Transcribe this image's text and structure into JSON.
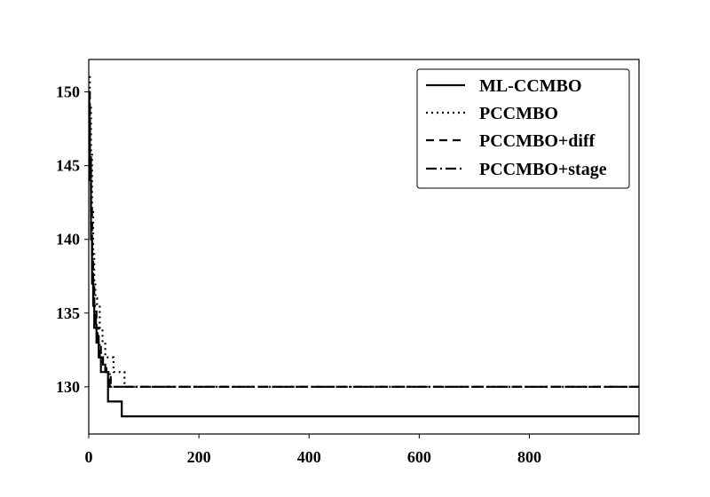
{
  "chart_data": {
    "type": "line",
    "title": "",
    "xlabel": "",
    "ylabel": "",
    "xlim": [
      0,
      999
    ],
    "ylim": [
      126.8,
      152.2
    ],
    "xticks": [
      0,
      200,
      400,
      600,
      800
    ],
    "yticks": [
      130,
      135,
      140,
      145,
      150
    ],
    "xtick_labels": [
      "0",
      "200",
      "400",
      "600",
      "800"
    ],
    "ytick_labels": [
      "130",
      "135",
      "140",
      "145",
      "150"
    ],
    "grid": false,
    "legend_position": "top-right",
    "series": [
      {
        "name": "ML-CCMBO",
        "style": "solid",
        "color": "#000000",
        "x": [
          0,
          1,
          2,
          4,
          6,
          8,
          10,
          14,
          18,
          22,
          35,
          60,
          999
        ],
        "y": [
          150,
          148,
          144,
          140,
          137,
          135.5,
          134,
          133,
          132,
          131,
          129,
          128,
          128
        ]
      },
      {
        "name": "PCCMBO",
        "style": "dotted",
        "color": "#000000",
        "x": [
          0,
          2,
          4,
          6,
          8,
          10,
          12,
          15,
          20,
          25,
          30,
          45,
          65,
          999
        ],
        "y": [
          151,
          149,
          146,
          142,
          139,
          137,
          136,
          135.5,
          134,
          133,
          132,
          131,
          130,
          130
        ]
      },
      {
        "name": "PCCMBO+diff",
        "style": "dashed",
        "color": "#000000",
        "x": [
          0,
          2,
          4,
          6,
          8,
          10,
          14,
          18,
          22,
          26,
          32,
          40,
          999
        ],
        "y": [
          150,
          146,
          142,
          139,
          137,
          135.5,
          134,
          133,
          132,
          131.5,
          131,
          130,
          130
        ]
      },
      {
        "name": "PCCMBO+stage",
        "style": "dashdot",
        "color": "#000000",
        "x": [
          0,
          2,
          4,
          6,
          8,
          10,
          13,
          16,
          20,
          25,
          30,
          38,
          999
        ],
        "y": [
          149,
          145,
          141,
          138,
          136,
          135,
          134,
          133,
          132,
          131.5,
          131,
          130,
          130
        ]
      }
    ]
  }
}
